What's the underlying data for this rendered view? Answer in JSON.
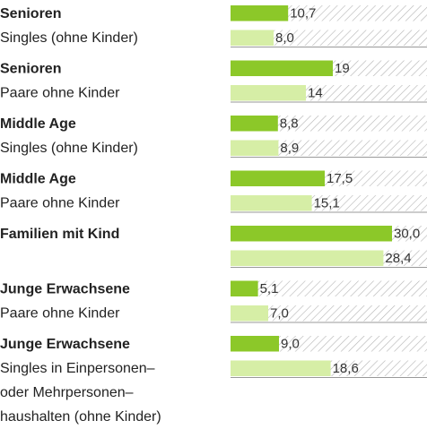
{
  "chart_data": {
    "type": "bar",
    "categories": [
      {
        "title": "Senioren",
        "lines": [
          "Singles (ohne Kinder)"
        ]
      },
      {
        "title": "Senioren",
        "lines": [
          "Paare ohne Kinder"
        ]
      },
      {
        "title": "Middle Age",
        "lines": [
          "Singles (ohne Kinder)"
        ]
      },
      {
        "title": "Middle Age",
        "lines": [
          "Paare ohne Kinder"
        ]
      },
      {
        "title": "Familien mit Kind",
        "lines": []
      },
      {
        "title": "Junge Erwachsene",
        "lines": [
          "Paare ohne Kinder"
        ]
      },
      {
        "title": "Junge Erwachsene",
        "lines": [
          "Singles in Einpersonen–",
          "oder Mehrpersonen–",
          "haushalten (ohne Kinder)"
        ]
      }
    ],
    "series": [
      {
        "color": "#8cc829",
        "values": [
          10.7,
          19,
          8.8,
          17.5,
          30.0,
          5.1,
          9.0
        ],
        "value_labels": [
          "10,7",
          "19",
          "8,8",
          "17,5",
          "30,0",
          "5,1",
          "9,0"
        ]
      },
      {
        "color": "#d6eea6",
        "values": [
          8.0,
          14,
          8.9,
          15.1,
          28.4,
          7.0,
          18.6
        ],
        "value_labels": [
          "8,0",
          "14",
          "8,9",
          "15,1",
          "28,4",
          "7,0",
          "18,6"
        ]
      }
    ],
    "xlim": [
      0,
      36.5
    ]
  }
}
